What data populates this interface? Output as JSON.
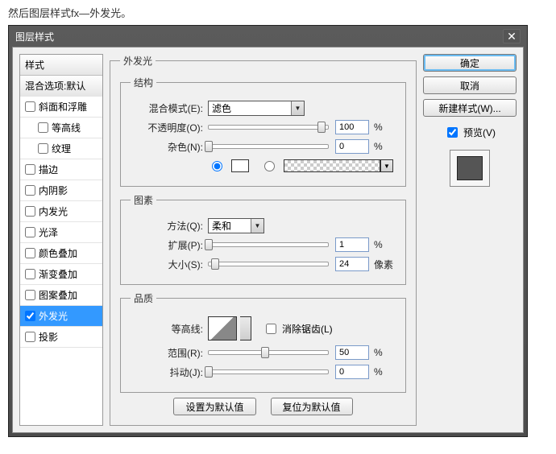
{
  "caption": "然后图层样式fx—外发光。",
  "dialog": {
    "title": "图层样式"
  },
  "styles": {
    "header": "样式",
    "blend": "混合选项:默认",
    "items": [
      {
        "label": "斜面和浮雕",
        "checked": false,
        "indent": false
      },
      {
        "label": "等高线",
        "checked": false,
        "indent": true
      },
      {
        "label": "纹理",
        "checked": false,
        "indent": true
      },
      {
        "label": "描边",
        "checked": false,
        "indent": false
      },
      {
        "label": "内阴影",
        "checked": false,
        "indent": false
      },
      {
        "label": "内发光",
        "checked": false,
        "indent": false
      },
      {
        "label": "光泽",
        "checked": false,
        "indent": false
      },
      {
        "label": "颜色叠加",
        "checked": false,
        "indent": false
      },
      {
        "label": "渐变叠加",
        "checked": false,
        "indent": false
      },
      {
        "label": "图案叠加",
        "checked": false,
        "indent": false
      },
      {
        "label": "外发光",
        "checked": true,
        "indent": false,
        "selected": true
      },
      {
        "label": "投影",
        "checked": false,
        "indent": false
      }
    ]
  },
  "outerGlow": {
    "mainTitle": "外发光",
    "structure": {
      "legend": "结构",
      "blendModeLabel": "混合模式(E):",
      "blendModeValue": "滤色",
      "opacityLabel": "不透明度(O):",
      "opacityValue": "100",
      "opacityUnit": "%",
      "noiseLabel": "杂色(N):",
      "noiseValue": "0",
      "noiseUnit": "%",
      "colorSwatch": "#ffffff"
    },
    "elements": {
      "legend": "图素",
      "methodLabel": "方法(Q):",
      "methodValue": "柔和",
      "spreadLabel": "扩展(P):",
      "spreadValue": "1",
      "spreadUnit": "%",
      "sizeLabel": "大小(S):",
      "sizeValue": "24",
      "sizeUnit": "像素"
    },
    "quality": {
      "legend": "品质",
      "contourLabel": "等高线:",
      "antiAliasLabel": "消除锯齿(L)",
      "antiAliasChecked": false,
      "rangeLabel": "范围(R):",
      "rangeValue": "50",
      "rangeUnit": "%",
      "jitterLabel": "抖动(J):",
      "jitterValue": "0",
      "jitterUnit": "%"
    },
    "defaults": {
      "set": "设置为默认值",
      "reset": "复位为默认值"
    }
  },
  "right": {
    "ok": "确定",
    "cancel": "取消",
    "newStyle": "新建样式(W)...",
    "previewLabel": "预览(V)",
    "previewChecked": true
  },
  "sliderPositions": {
    "opacity": 140,
    "noise": 0,
    "spread": 0,
    "size": 8,
    "range": 70,
    "jitter": 0
  }
}
